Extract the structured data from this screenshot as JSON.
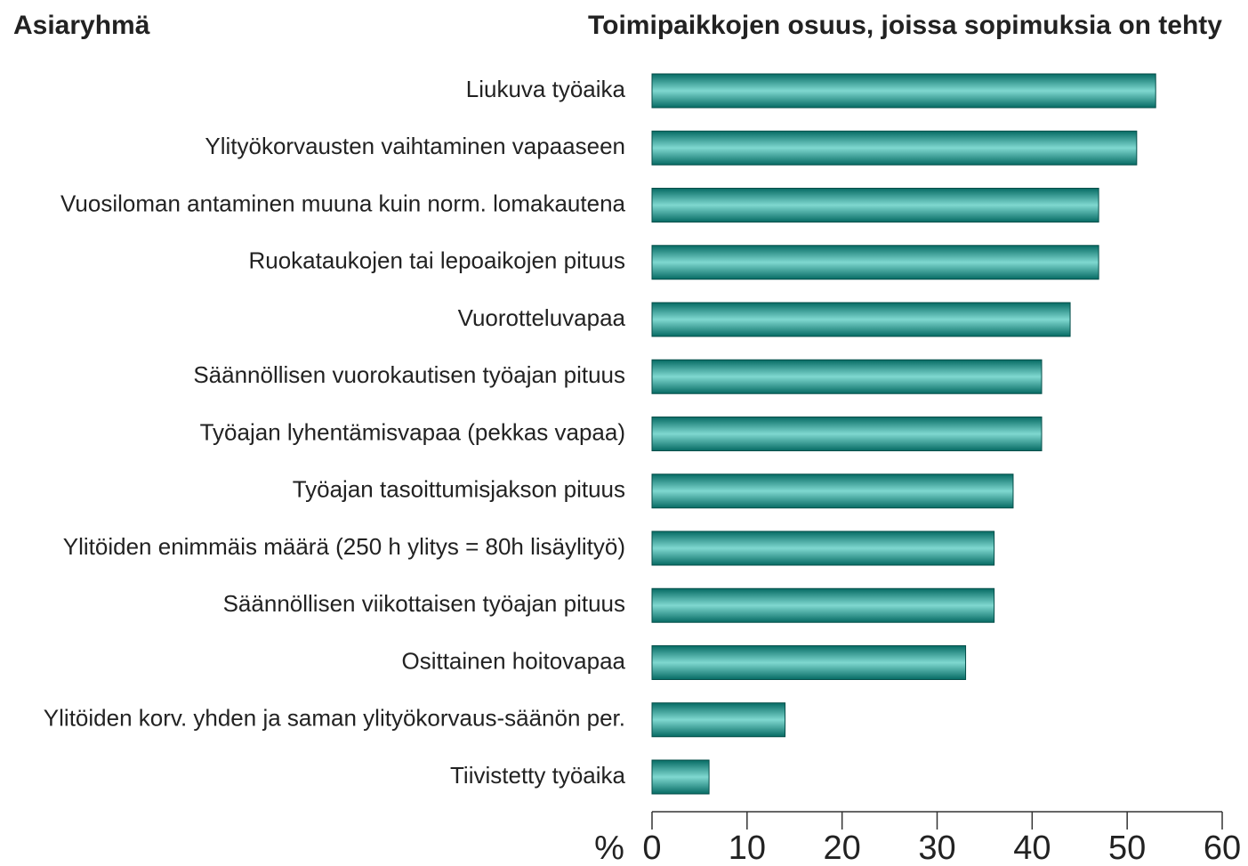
{
  "chart_data": {
    "type": "bar",
    "orientation": "horizontal",
    "category_header": "Asiaryhmä",
    "title": "Toimipaikkojen osuus, joissa sopimuksia on tehty",
    "x_label": "%",
    "categories": [
      "Liukuva työaika",
      "Ylityökorvausten vaihtaminen vapaaseen",
      "Vuosiloman antaminen muuna kuin norm. lomakautena",
      "Ruokataukojen tai lepoaikojen pituus",
      "Vuorotteluvapaa",
      "Säännöllisen vuorokautisen työajan pituus",
      "Työajan lyhentämisvapaa (pekkas vapaa)",
      "Työajan tasoittumisjakson pituus",
      "Ylitöiden enimmäis määrä (250 h ylitys = 80h lisäylityö)",
      "Säännöllisen viikottaisen työajan pituus",
      "Osittainen hoitovapaa",
      "Ylitöiden korv. yhden ja saman ylityökorvaus-säänön per.",
      "Tiivistetty työaika"
    ],
    "values": [
      53,
      51,
      47,
      47,
      44,
      41,
      41,
      38,
      36,
      36,
      33,
      14,
      6
    ],
    "color": "#0e8f86",
    "xlim": [
      0,
      60
    ],
    "xticks": [
      0,
      10,
      20,
      30,
      40,
      50,
      60
    ]
  }
}
